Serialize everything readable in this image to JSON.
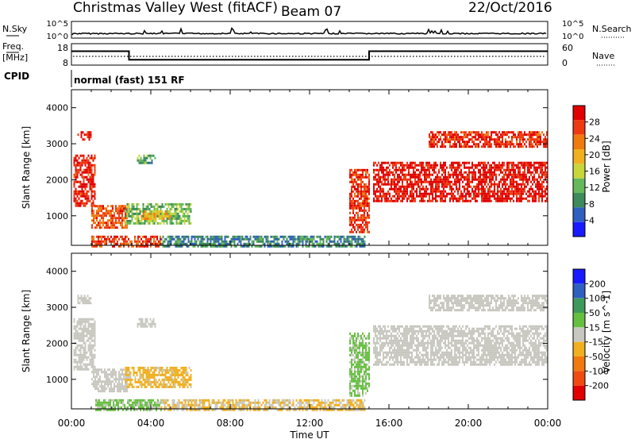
{
  "header": {
    "title": "Christmas Valley West (fitACF)",
    "beam": "Beam 07",
    "date": "22/Oct/2016"
  },
  "strips": {
    "nsky": {
      "label": "N.Sky",
      "tick_top": "10^5",
      "tick_bottom": "10^0",
      "right_label": "N.Search",
      "right_tick_top": "10^5",
      "right_tick_bottom": "10^0"
    },
    "freq": {
      "label_line1": "Freq.",
      "label_line2": "[MHz]",
      "tick_top": "18",
      "tick_bottom": "8",
      "right_label": "Nave",
      "right_tick_top": "60",
      "right_tick_bottom": "0"
    },
    "cpid": {
      "label": "CPID",
      "value": "normal (fast) 151 RF"
    }
  },
  "colors": {
    "power_scale": [
      "#1a1aff",
      "#2f5fbf",
      "#3d8a5a",
      "#66b85a",
      "#c8d63a",
      "#f0b020",
      "#f07a10",
      "#ee3a10",
      "#e00000"
    ],
    "velocity_scale": [
      "#e00000",
      "#f04a10",
      "#f07a10",
      "#f0b020",
      "#c8c8c0",
      "#66c040",
      "#3d9a5a",
      "#2f5fbf",
      "#1a1aff"
    ]
  },
  "chart_data": [
    {
      "type": "heatmap",
      "panel": "power",
      "ylabel": "Slant Range [km]",
      "xlabel": "Time UT",
      "x_ticks": [
        "00:00",
        "04:00",
        "08:00",
        "12:00",
        "16:00",
        "20:00",
        "00:00"
      ],
      "xlim_hours": [
        0,
        24
      ],
      "y_ticks": [
        "1000",
        "2000",
        "3000",
        "4000"
      ],
      "ylim": [
        180,
        4500
      ],
      "colorbar": {
        "label": "Power [dB]",
        "ticks": [
          "4",
          "8",
          "12",
          "16",
          "20",
          "24",
          "28"
        ],
        "range": [
          0,
          30
        ]
      },
      "regions": [
        {
          "t0": 0.1,
          "t1": 1.2,
          "r0": 1300,
          "r1": 2700,
          "value": 27
        },
        {
          "t0": 0.3,
          "t1": 1.0,
          "r0": 3100,
          "r1": 3350,
          "value": 28
        },
        {
          "t0": 1.0,
          "t1": 2.8,
          "r0": 700,
          "r1": 1300,
          "value": 24
        },
        {
          "t0": 2.7,
          "t1": 6.0,
          "r0": 800,
          "r1": 1350,
          "value": 12
        },
        {
          "t0": 3.5,
          "t1": 5.0,
          "r0": 950,
          "r1": 1150,
          "value": 18
        },
        {
          "t0": 4.5,
          "t1": 14.8,
          "r0": 180,
          "r1": 450,
          "value": 8
        },
        {
          "t0": 1.0,
          "t1": 4.5,
          "r0": 180,
          "r1": 450,
          "value": 25
        },
        {
          "t0": 14.0,
          "t1": 15.0,
          "r0": 550,
          "r1": 2300,
          "value": 26
        },
        {
          "t0": 15.2,
          "t1": 24.0,
          "r0": 1400,
          "r1": 2500,
          "value": 28
        },
        {
          "t0": 18.0,
          "t1": 24.0,
          "r0": 2900,
          "r1": 3350,
          "value": 26
        },
        {
          "t0": 3.3,
          "t1": 4.2,
          "r0": 2450,
          "r1": 2700,
          "value": 10
        }
      ]
    },
    {
      "type": "heatmap",
      "panel": "velocity",
      "ylabel": "Slant Range [km]",
      "xlabel": "Time UT",
      "x_ticks": [
        "00:00",
        "04:00",
        "08:00",
        "12:00",
        "16:00",
        "20:00",
        "00:00"
      ],
      "xlim_hours": [
        0,
        24
      ],
      "y_ticks": [
        "1000",
        "2000",
        "3000",
        "4000"
      ],
      "ylim": [
        180,
        4500
      ],
      "colorbar": {
        "label": "Velocity [m s^-1]",
        "ticks": [
          "200",
          "100",
          "50",
          "15",
          "-15",
          "-50",
          "-100",
          "-200"
        ],
        "range": [
          -250,
          250
        ]
      },
      "regions": [
        {
          "t0": 0.1,
          "t1": 1.2,
          "r0": 1300,
          "r1": 2700,
          "value": 0
        },
        {
          "t0": 0.3,
          "t1": 1.0,
          "r0": 3100,
          "r1": 3350,
          "value": 0
        },
        {
          "t0": 1.0,
          "t1": 2.8,
          "r0": 700,
          "r1": 1300,
          "value": 0
        },
        {
          "t0": 2.7,
          "t1": 6.0,
          "r0": 800,
          "r1": 1350,
          "value": -40
        },
        {
          "t0": 1.2,
          "t1": 4.5,
          "r0": 180,
          "r1": 450,
          "value": 35
        },
        {
          "t0": 4.5,
          "t1": 14.8,
          "r0": 180,
          "r1": 450,
          "value": -30
        },
        {
          "t0": 14.0,
          "t1": 15.0,
          "r0": 550,
          "r1": 2300,
          "value": 35
        },
        {
          "t0": 15.2,
          "t1": 24.0,
          "r0": 1400,
          "r1": 2500,
          "value": 0
        },
        {
          "t0": 18.0,
          "t1": 24.0,
          "r0": 2900,
          "r1": 3350,
          "value": 0
        },
        {
          "t0": 3.3,
          "t1": 4.2,
          "r0": 2450,
          "r1": 2700,
          "value": 0
        }
      ]
    }
  ],
  "frequency_trace": {
    "x_hours": [
      0,
      2.9,
      2.9,
      15.0,
      15.0,
      24
    ],
    "values_mhz": [
      14.5,
      14.5,
      10.5,
      10.5,
      14.5,
      14.5
    ]
  }
}
